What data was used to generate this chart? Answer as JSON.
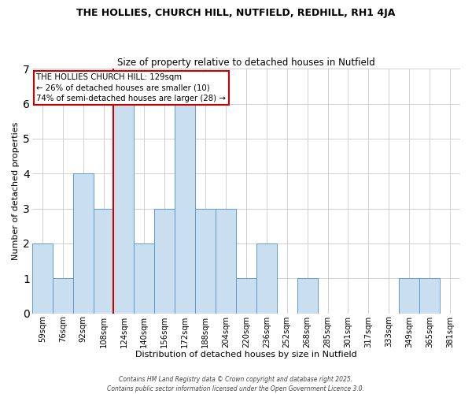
{
  "title1": "THE HOLLIES, CHURCH HILL, NUTFIELD, REDHILL, RH1 4JA",
  "title2": "Size of property relative to detached houses in Nutfield",
  "xlabel": "Distribution of detached houses by size in Nutfield",
  "ylabel": "Number of detached properties",
  "footer": "Contains HM Land Registry data © Crown copyright and database right 2025.\nContains public sector information licensed under the Open Government Licence 3.0.",
  "bin_labels": [
    "59sqm",
    "76sqm",
    "92sqm",
    "108sqm",
    "124sqm",
    "140sqm",
    "156sqm",
    "172sqm",
    "188sqm",
    "204sqm",
    "220sqm",
    "236sqm",
    "252sqm",
    "268sqm",
    "285sqm",
    "301sqm",
    "317sqm",
    "333sqm",
    "349sqm",
    "365sqm",
    "381sqm"
  ],
  "counts": [
    2,
    1,
    4,
    3,
    6,
    2,
    3,
    6,
    3,
    3,
    1,
    2,
    0,
    1,
    0,
    0,
    0,
    0,
    1,
    1,
    0
  ],
  "reference_line_x": 3.5,
  "annotation_text": "THE HOLLIES CHURCH HILL: 129sqm\n← 26% of detached houses are smaller (10)\n74% of semi-detached houses are larger (28) →",
  "bar_color": "#c9dff0",
  "bar_edge_color": "#5b9bd5",
  "ref_line_color": "#cc0000",
  "ylim": [
    0,
    7
  ],
  "yticks": [
    0,
    1,
    2,
    3,
    4,
    5,
    6,
    7
  ],
  "background_color": "#ffffff",
  "grid_color": "#d0d0d0",
  "fig_width": 6.0,
  "fig_height": 5.0,
  "dpi": 100
}
